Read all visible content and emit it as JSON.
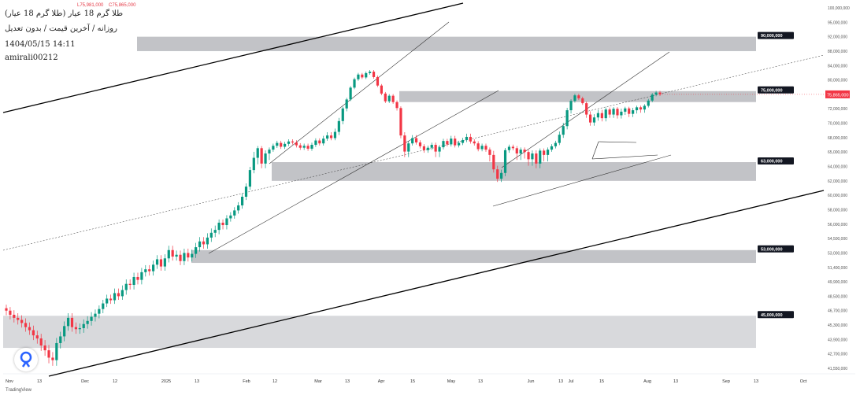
{
  "header": {
    "title": "طلا گرم 18 عیار (طلا گرم 18 عیار)",
    "subtitle": "روزانه / آخرین قیمت / بدون تعدیل",
    "datetime": "1404/05/15 14:11",
    "author": "amirali00212",
    "ohlc_values": [
      "L75,981,000",
      "C75,865,000"
    ]
  },
  "footer": {
    "brand": "TradingView"
  },
  "colors": {
    "up": "#089981",
    "down": "#f23645",
    "zone": "#b7b8bd",
    "zone_light": "#d1d2d6",
    "label_bg": "#131722"
  },
  "chart_data": {
    "type": "candlestick",
    "price_axis_ticks": [
      "100,000,000",
      "95,000,000",
      "92,000,000",
      "88,000,000",
      "84,000,000",
      "80,000,000",
      "75,865,000",
      "72,000,000",
      "70,000,000",
      "68,000,000",
      "65,000,000",
      "64,000,000",
      "62,000,000",
      "60,000,000",
      "58,000,000",
      "56,000,000",
      "54,500,000",
      "53,000,000",
      "51,400,000",
      "49,900,000",
      "48,500,000",
      "46,700,000",
      "45,300,000",
      "43,900,000",
      "42,700,000",
      "41,550,000"
    ],
    "time_axis_ticks": [
      "Nov",
      "13",
      "Dec",
      "12",
      "2025",
      "13",
      "Feb",
      "12",
      "Mar",
      "13",
      "Apr",
      "15",
      "May",
      "13",
      "Jun",
      "13",
      "Jul",
      "15",
      "Aug",
      "13",
      "Sep",
      "13",
      "Oct"
    ],
    "last_price_label": "75,865,000",
    "zones": [
      {
        "label": "90,000,000",
        "low": 88000000,
        "high": 92000000
      },
      {
        "label": "75,000,000",
        "low": 73800000,
        "high": 76800000
      },
      {
        "label": "63,000,000",
        "low": 62000000,
        "high": 64300000
      },
      {
        "label": "53,000,000",
        "low": 51900000,
        "high": 53300000
      },
      {
        "label": "45,000,000",
        "low": 43200000,
        "high": 46200000
      }
    ],
    "candles_close": [
      46.7,
      46.3,
      46.0,
      45.8,
      45.5,
      45.1,
      44.8,
      44.3,
      44.0,
      43.4,
      43.0,
      42.4,
      42.2,
      43.6,
      44.2,
      45.2,
      46.0,
      45.1,
      44.9,
      45.0,
      45.4,
      45.7,
      46.1,
      46.4,
      46.9,
      47.6,
      48.2,
      48.0,
      48.8,
      48.5,
      49.1,
      49.7,
      49.6,
      50.4,
      50.1,
      50.9,
      51.2,
      51.0,
      51.7,
      52.3,
      51.5,
      52.4,
      53.3,
      52.6,
      52.8,
      52.1,
      53.0,
      52.5,
      52.9,
      53.6,
      54.2,
      53.9,
      54.6,
      55.1,
      55.4,
      56.2,
      55.9,
      56.8,
      57.2,
      57.9,
      58.6,
      59.8,
      61.2,
      63.5,
      64.6,
      65.8,
      64.2,
      64.9,
      65.5,
      66.3,
      66.9,
      66.1,
      66.7,
      67.2,
      67.0,
      66.4,
      65.9,
      66.3,
      65.7,
      66.5,
      67.4,
      66.8,
      67.8,
      68.3,
      67.9,
      68.8,
      70.3,
      72.1,
      74.5,
      77.8,
      80.2,
      81.5,
      80.7,
      81.9,
      82.3,
      80.8,
      78.4,
      76.1,
      74.0,
      75.5,
      73.8,
      72.2,
      68.3,
      65.1,
      66.8,
      67.9,
      67.0,
      66.2,
      65.4,
      65.9,
      66.5,
      65.1,
      66.0,
      67.3,
      66.6,
      67.8,
      66.4,
      66.9,
      67.5,
      68.1,
      67.2,
      66.8,
      65.6,
      66.3,
      65.5,
      64.8,
      63.6,
      62.3,
      63.1,
      65.4,
      66.1,
      65.8,
      64.9,
      65.5,
      65.0,
      64.5,
      64.9,
      64.2,
      65.3,
      64.8,
      65.5,
      66.2,
      66.9,
      68.4,
      69.6,
      71.8,
      74.1,
      75.6,
      74.8,
      73.5,
      71.2,
      70.1,
      70.8,
      71.4,
      70.7,
      71.9,
      71.2,
      72.0,
      71.1,
      71.6,
      72.1,
      71.3,
      71.8,
      72.4,
      71.9,
      72.8,
      74.2,
      75.8,
      76.4,
      75.865
    ]
  }
}
